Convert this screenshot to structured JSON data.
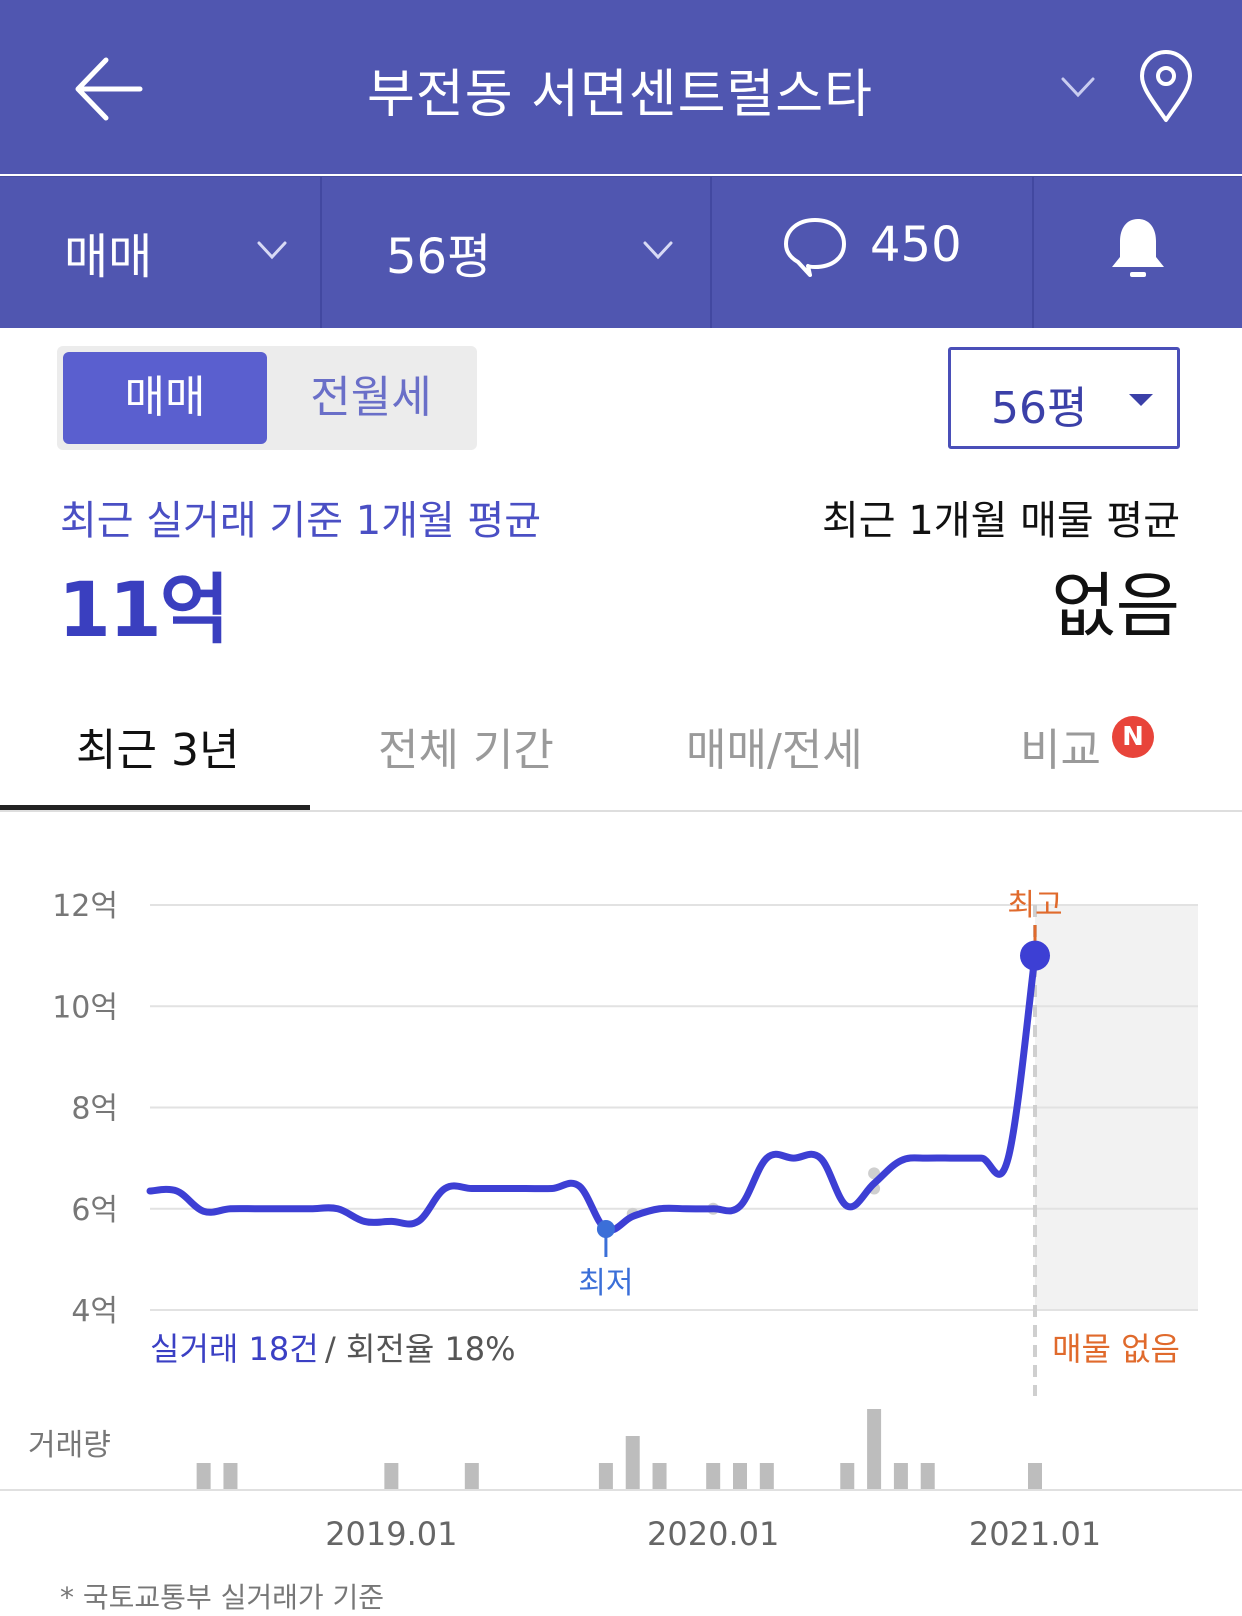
{
  "header": {
    "title": "부전동 서면센트럴스타",
    "icons": [
      "back-arrow-icon",
      "chevron-down-icon",
      "map-pin-icon"
    ],
    "accent_color": "#5056b0"
  },
  "subbar": {
    "deal_type": "매매",
    "size": "56평",
    "comment_count": "450",
    "icons": [
      "chevron-down-icon",
      "speech-bubble-icon",
      "bell-icon"
    ]
  },
  "segment": {
    "options": [
      "매매",
      "전월세"
    ],
    "selected": "매매"
  },
  "size_select": {
    "value": "56평"
  },
  "summary": {
    "recent_label": "최근 실거래 기준 1개월 평균",
    "recent_value": "11억",
    "listing_label": "최근 1개월 매물 평균",
    "listing_value": "없음"
  },
  "tabs": [
    {
      "label": "최근 3년",
      "active": true
    },
    {
      "label": "전체 기간",
      "active": false
    },
    {
      "label": "매매/전세",
      "active": false
    },
    {
      "label": "비교",
      "active": false,
      "badge": "N"
    }
  ],
  "chart_data": {
    "type": "line",
    "y_unit": "억",
    "yticks": [
      "12억",
      "10억",
      "8억",
      "6억",
      "4억"
    ],
    "ylim": [
      4,
      12
    ],
    "xticks": [
      "2019.01",
      "2020.01",
      "2021.01"
    ],
    "series": [
      {
        "color": "#3d3fd4",
        "points": [
          [
            "2018.04",
            6.35
          ],
          [
            "2018.05",
            6.35
          ],
          [
            "2018.06",
            5.95
          ],
          [
            "2018.07",
            6.0
          ],
          [
            "2018.08",
            6.0
          ],
          [
            "2018.09",
            6.0
          ],
          [
            "2018.10",
            6.0
          ],
          [
            "2018.11",
            6.0
          ],
          [
            "2018.12",
            5.75
          ],
          [
            "2019.01",
            5.75
          ],
          [
            "2019.02",
            5.75
          ],
          [
            "2019.03",
            6.4
          ],
          [
            "2019.04",
            6.4
          ],
          [
            "2019.05",
            6.4
          ],
          [
            "2019.06",
            6.4
          ],
          [
            "2019.07",
            6.4
          ],
          [
            "2019.08",
            6.45
          ],
          [
            "2019.09",
            5.6
          ],
          [
            "2019.10",
            5.85
          ],
          [
            "2019.11",
            6.0
          ],
          [
            "2019.12",
            6.0
          ],
          [
            "2020.01",
            6.0
          ],
          [
            "2020.02",
            6.05
          ],
          [
            "2020.03",
            7.0
          ],
          [
            "2020.04",
            7.0
          ],
          [
            "2020.05",
            7.0
          ],
          [
            "2020.06",
            6.05
          ],
          [
            "2020.07",
            6.5
          ],
          [
            "2020.08",
            6.95
          ],
          [
            "2020.09",
            7.0
          ],
          [
            "2020.10",
            7.0
          ],
          [
            "2020.11",
            7.0
          ],
          [
            "2020.12",
            7.0
          ],
          [
            "2021.01",
            11.0
          ]
        ]
      }
    ],
    "scatter_points": [
      [
        "2019.10",
        5.9
      ],
      [
        "2020.01",
        6.0
      ],
      [
        "2020.07",
        6.4
      ],
      [
        "2020.07",
        6.7
      ]
    ],
    "annotations": [
      {
        "label": "최고",
        "x": "2021.01",
        "y": 11.0,
        "color": "#e06a2c"
      },
      {
        "label": "최저",
        "x": "2019.09",
        "y": 5.6,
        "color": "#3b6fd8"
      }
    ],
    "summary_left": "실거래 18건",
    "summary_sep": "/",
    "summary_right": "회전율 18%",
    "no_listing_label": "매물 없음",
    "volume_label": "거래량",
    "volume": [
      [
        "2018.06",
        1
      ],
      [
        "2018.07",
        1
      ],
      [
        "2019.01",
        1
      ],
      [
        "2019.04",
        1
      ],
      [
        "2019.09",
        1
      ],
      [
        "2019.10",
        2
      ],
      [
        "2019.11",
        1
      ],
      [
        "2020.01",
        1
      ],
      [
        "2020.02",
        1
      ],
      [
        "2020.03",
        1
      ],
      [
        "2020.06",
        1
      ],
      [
        "2020.07",
        3
      ],
      [
        "2020.08",
        1
      ],
      [
        "2020.09",
        1
      ],
      [
        "2021.01",
        1
      ]
    ],
    "grid": true,
    "shaded_future_region": true
  },
  "footer_note": "* 국토교통부 실거래가 기준"
}
